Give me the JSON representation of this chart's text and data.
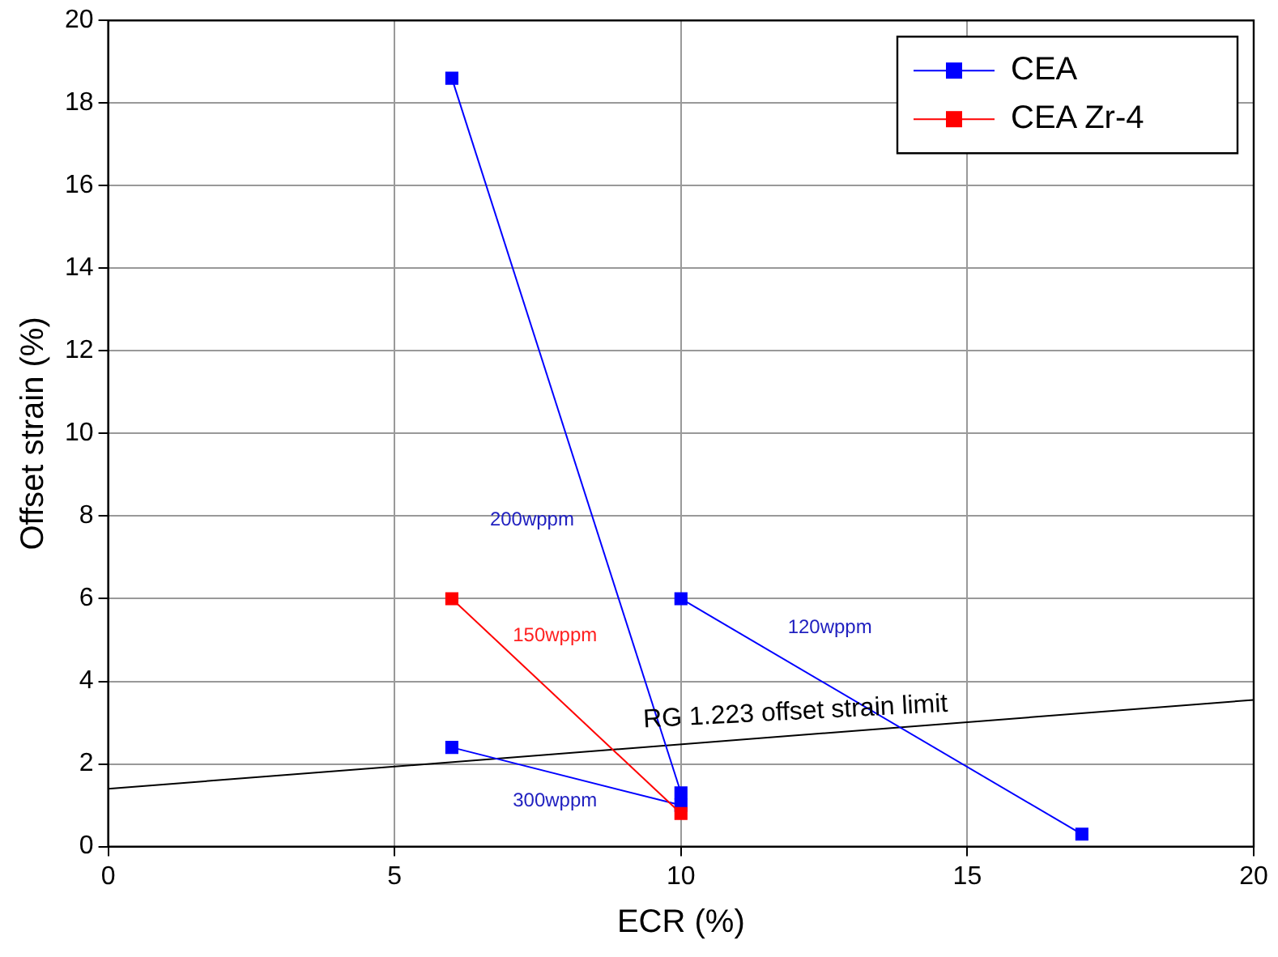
{
  "chart_data": {
    "type": "line",
    "xlabel": "ECR (%)",
    "ylabel": "Offset strain (%)",
    "xlim": [
      0,
      20
    ],
    "xticks": [
      0,
      5,
      10,
      15,
      20
    ],
    "ylim": [
      0,
      20
    ],
    "yticks": [
      0,
      2,
      4,
      6,
      8,
      10,
      12,
      14,
      16,
      18,
      20
    ],
    "series": [
      {
        "name": "CEA",
        "color": "#0000ff",
        "x": [
          6,
          10
        ],
        "values": [
          18.6,
          1.3
        ]
      },
      {
        "name": "CEA Zr-4",
        "color": "#ff0000",
        "x": [
          6,
          10
        ],
        "values": [
          6.0,
          0.8
        ]
      },
      {
        "color": "#0000ff",
        "x": [
          10,
          17
        ],
        "values": [
          6.0,
          0.3
        ]
      },
      {
        "color": "#0000ff",
        "x": [
          6,
          10
        ],
        "values": [
          2.4,
          1.0
        ]
      },
      {
        "type": "line",
        "color": "#000000",
        "marker": "none",
        "x": [
          0,
          20
        ],
        "values": [
          1.4,
          3.55
        ]
      }
    ],
    "annotations": [
      "RG 1.223 offset strain limit",
      "200wppm",
      "150wppm",
      "120wppm",
      "300wppm"
    ],
    "marker": "square",
    "grid": true,
    "legend": "top right"
  }
}
